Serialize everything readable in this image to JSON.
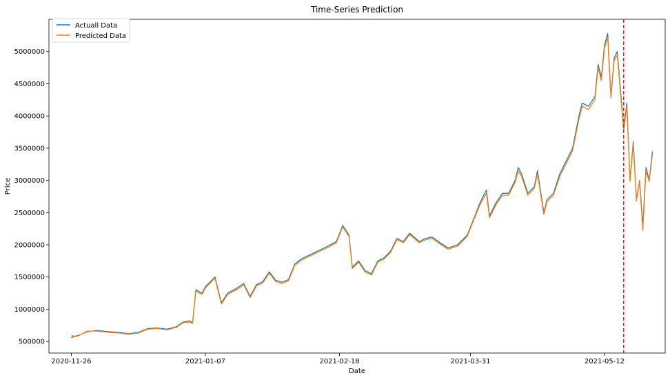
{
  "chart_data": {
    "type": "line",
    "title": "Time-Series Prediction",
    "xlabel": "Date",
    "ylabel": "Price",
    "x_type": "date",
    "xlim": [
      "2020-11-19",
      "2021-05-31"
    ],
    "ylim": [
      320000,
      5500000
    ],
    "x_ticks": [
      "2020-11-26",
      "2021-01-07",
      "2021-02-18",
      "2021-03-31",
      "2021-05-12"
    ],
    "y_ticks": [
      500000,
      1000000,
      1500000,
      2000000,
      2500000,
      3000000,
      3500000,
      4000000,
      4500000,
      5000000
    ],
    "y_tick_labels": [
      "500000",
      "1000000",
      "1500000",
      "2000000",
      "2500000",
      "3000000",
      "3500000",
      "4000000",
      "4500000",
      "5000000"
    ],
    "grid": false,
    "legend": "upper-left",
    "vline": {
      "x": "2021-05-18",
      "color": "#d62728",
      "style": "dashed"
    },
    "series": [
      {
        "name": "Actuall Data",
        "color": "#1f77b4",
        "points": [
          [
            "2020-11-26",
            560000
          ],
          [
            "2020-11-28",
            590000
          ],
          [
            "2020-12-01",
            650000
          ],
          [
            "2020-12-04",
            670000
          ],
          [
            "2020-12-08",
            650000
          ],
          [
            "2020-12-11",
            640000
          ],
          [
            "2020-12-14",
            620000
          ],
          [
            "2020-12-17",
            640000
          ],
          [
            "2020-12-20",
            700000
          ],
          [
            "2020-12-23",
            710000
          ],
          [
            "2020-12-26",
            690000
          ],
          [
            "2020-12-29",
            730000
          ],
          [
            "2020-12-31",
            800000
          ],
          [
            "2021-01-02",
            820000
          ],
          [
            "2021-01-03",
            790000
          ],
          [
            "2021-01-04",
            1300000
          ],
          [
            "2021-01-06",
            1250000
          ],
          [
            "2021-01-07",
            1350000
          ],
          [
            "2021-01-10",
            1500000
          ],
          [
            "2021-01-12",
            1100000
          ],
          [
            "2021-01-14",
            1250000
          ],
          [
            "2021-01-17",
            1330000
          ],
          [
            "2021-01-19",
            1400000
          ],
          [
            "2021-01-21",
            1200000
          ],
          [
            "2021-01-23",
            1380000
          ],
          [
            "2021-01-25",
            1430000
          ],
          [
            "2021-01-27",
            1580000
          ],
          [
            "2021-01-29",
            1450000
          ],
          [
            "2021-01-31",
            1420000
          ],
          [
            "2021-02-02",
            1460000
          ],
          [
            "2021-02-04",
            1700000
          ],
          [
            "2021-02-06",
            1780000
          ],
          [
            "2021-02-09",
            1850000
          ],
          [
            "2021-02-11",
            1900000
          ],
          [
            "2021-02-14",
            1970000
          ],
          [
            "2021-02-17",
            2050000
          ],
          [
            "2021-02-19",
            2300000
          ],
          [
            "2021-02-21",
            2150000
          ],
          [
            "2021-02-22",
            1650000
          ],
          [
            "2021-02-24",
            1750000
          ],
          [
            "2021-02-26",
            1600000
          ],
          [
            "2021-02-28",
            1550000
          ],
          [
            "2021-03-02",
            1750000
          ],
          [
            "2021-03-04",
            1800000
          ],
          [
            "2021-03-06",
            1900000
          ],
          [
            "2021-03-08",
            2100000
          ],
          [
            "2021-03-10",
            2050000
          ],
          [
            "2021-03-12",
            2180000
          ],
          [
            "2021-03-15",
            2050000
          ],
          [
            "2021-03-17",
            2100000
          ],
          [
            "2021-03-19",
            2120000
          ],
          [
            "2021-03-21",
            2050000
          ],
          [
            "2021-03-24",
            1950000
          ],
          [
            "2021-03-27",
            2000000
          ],
          [
            "2021-03-30",
            2150000
          ],
          [
            "2021-04-01",
            2400000
          ],
          [
            "2021-04-03",
            2650000
          ],
          [
            "2021-04-05",
            2850000
          ],
          [
            "2021-04-06",
            2450000
          ],
          [
            "2021-04-08",
            2650000
          ],
          [
            "2021-04-10",
            2800000
          ],
          [
            "2021-04-12",
            2800000
          ],
          [
            "2021-04-14",
            3000000
          ],
          [
            "2021-04-15",
            3200000
          ],
          [
            "2021-04-16",
            3100000
          ],
          [
            "2021-04-18",
            2800000
          ],
          [
            "2021-04-20",
            2900000
          ],
          [
            "2021-04-21",
            3150000
          ],
          [
            "2021-04-23",
            2500000
          ],
          [
            "2021-04-24",
            2700000
          ],
          [
            "2021-04-26",
            2800000
          ],
          [
            "2021-04-28",
            3100000
          ],
          [
            "2021-04-30",
            3300000
          ],
          [
            "2021-05-02",
            3500000
          ],
          [
            "2021-05-04",
            4000000
          ],
          [
            "2021-05-05",
            4200000
          ],
          [
            "2021-05-07",
            4150000
          ],
          [
            "2021-05-09",
            4300000
          ],
          [
            "2021-05-10",
            4800000
          ],
          [
            "2021-05-11",
            4600000
          ],
          [
            "2021-05-12",
            5100000
          ],
          [
            "2021-05-13",
            5280000
          ],
          [
            "2021-05-14",
            4300000
          ],
          [
            "2021-05-15",
            4900000
          ],
          [
            "2021-05-16",
            5000000
          ],
          [
            "2021-05-17",
            4400000
          ],
          [
            "2021-05-18",
            3800000
          ],
          [
            "2021-05-19",
            4200000
          ],
          [
            "2021-05-20",
            3000000
          ],
          [
            "2021-05-21",
            3600000
          ],
          [
            "2021-05-22",
            2700000
          ],
          [
            "2021-05-23",
            3000000
          ],
          [
            "2021-05-24",
            2300000
          ],
          [
            "2021-05-25",
            3200000
          ],
          [
            "2021-05-26",
            3000000
          ],
          [
            "2021-05-27",
            3450000
          ]
        ]
      },
      {
        "name": "Predicted Data",
        "color": "#ff7f0e",
        "points": [
          [
            "2020-11-26",
            590000
          ],
          [
            "2020-11-28",
            580000
          ],
          [
            "2020-12-01",
            660000
          ],
          [
            "2020-12-04",
            660000
          ],
          [
            "2020-12-08",
            640000
          ],
          [
            "2020-12-11",
            630000
          ],
          [
            "2020-12-14",
            610000
          ],
          [
            "2020-12-17",
            630000
          ],
          [
            "2020-12-20",
            690000
          ],
          [
            "2020-12-23",
            700000
          ],
          [
            "2020-12-26",
            680000
          ],
          [
            "2020-12-29",
            720000
          ],
          [
            "2020-12-31",
            790000
          ],
          [
            "2021-01-02",
            800000
          ],
          [
            "2021-01-03",
            780000
          ],
          [
            "2021-01-04",
            1280000
          ],
          [
            "2021-01-06",
            1230000
          ],
          [
            "2021-01-07",
            1330000
          ],
          [
            "2021-01-10",
            1480000
          ],
          [
            "2021-01-12",
            1080000
          ],
          [
            "2021-01-14",
            1230000
          ],
          [
            "2021-01-17",
            1310000
          ],
          [
            "2021-01-19",
            1380000
          ],
          [
            "2021-01-21",
            1180000
          ],
          [
            "2021-01-23",
            1360000
          ],
          [
            "2021-01-25",
            1410000
          ],
          [
            "2021-01-27",
            1560000
          ],
          [
            "2021-01-29",
            1430000
          ],
          [
            "2021-01-31",
            1400000
          ],
          [
            "2021-02-02",
            1440000
          ],
          [
            "2021-02-04",
            1680000
          ],
          [
            "2021-02-06",
            1760000
          ],
          [
            "2021-02-09",
            1830000
          ],
          [
            "2021-02-11",
            1880000
          ],
          [
            "2021-02-14",
            1950000
          ],
          [
            "2021-02-17",
            2030000
          ],
          [
            "2021-02-19",
            2280000
          ],
          [
            "2021-02-21",
            2130000
          ],
          [
            "2021-02-22",
            1630000
          ],
          [
            "2021-02-24",
            1730000
          ],
          [
            "2021-02-26",
            1580000
          ],
          [
            "2021-02-28",
            1530000
          ],
          [
            "2021-03-02",
            1730000
          ],
          [
            "2021-03-04",
            1780000
          ],
          [
            "2021-03-06",
            1880000
          ],
          [
            "2021-03-08",
            2080000
          ],
          [
            "2021-03-10",
            2030000
          ],
          [
            "2021-03-12",
            2160000
          ],
          [
            "2021-03-15",
            2030000
          ],
          [
            "2021-03-17",
            2080000
          ],
          [
            "2021-03-19",
            2100000
          ],
          [
            "2021-03-21",
            2030000
          ],
          [
            "2021-03-24",
            1930000
          ],
          [
            "2021-03-27",
            1980000
          ],
          [
            "2021-03-30",
            2130000
          ],
          [
            "2021-04-01",
            2380000
          ],
          [
            "2021-04-03",
            2620000
          ],
          [
            "2021-04-05",
            2800000
          ],
          [
            "2021-04-06",
            2420000
          ],
          [
            "2021-04-08",
            2620000
          ],
          [
            "2021-04-10",
            2770000
          ],
          [
            "2021-04-12",
            2770000
          ],
          [
            "2021-04-14",
            2970000
          ],
          [
            "2021-04-15",
            3150000
          ],
          [
            "2021-04-16",
            3060000
          ],
          [
            "2021-04-18",
            2770000
          ],
          [
            "2021-04-20",
            2870000
          ],
          [
            "2021-04-21",
            3100000
          ],
          [
            "2021-04-23",
            2470000
          ],
          [
            "2021-04-24",
            2670000
          ],
          [
            "2021-04-26",
            2770000
          ],
          [
            "2021-04-28",
            3060000
          ],
          [
            "2021-04-30",
            3260000
          ],
          [
            "2021-05-02",
            3460000
          ],
          [
            "2021-05-04",
            3950000
          ],
          [
            "2021-05-05",
            4150000
          ],
          [
            "2021-05-07",
            4100000
          ],
          [
            "2021-05-09",
            4250000
          ],
          [
            "2021-05-10",
            4750000
          ],
          [
            "2021-05-11",
            4550000
          ],
          [
            "2021-05-12",
            5050000
          ],
          [
            "2021-05-13",
            5220000
          ],
          [
            "2021-05-14",
            4280000
          ],
          [
            "2021-05-15",
            4850000
          ],
          [
            "2021-05-16",
            4950000
          ],
          [
            "2021-05-17",
            4350000
          ],
          [
            "2021-05-18",
            3760000
          ],
          [
            "2021-05-19",
            4150000
          ],
          [
            "2021-05-20",
            2980000
          ],
          [
            "2021-05-21",
            3560000
          ],
          [
            "2021-05-22",
            2680000
          ],
          [
            "2021-05-23",
            2980000
          ],
          [
            "2021-05-24",
            2220000
          ],
          [
            "2021-05-25",
            3150000
          ],
          [
            "2021-05-26",
            2980000
          ],
          [
            "2021-05-27",
            3400000
          ]
        ]
      }
    ]
  }
}
